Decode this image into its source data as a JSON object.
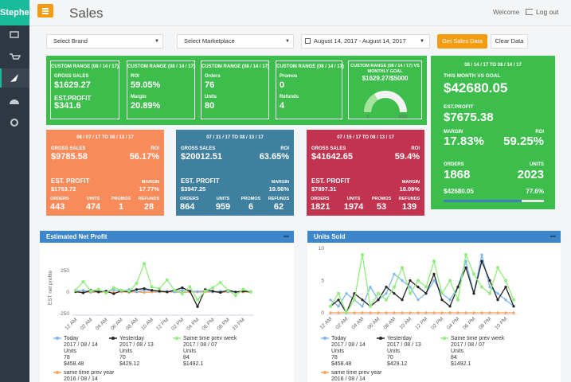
{
  "sidebar": {
    "user": "Stephen"
  },
  "header": {
    "title": "Sales",
    "welcome": "Welcome",
    "logout": "Log out"
  },
  "filters": {
    "brand": "Select Brand",
    "marketplace": "Select Marketplace",
    "date_range": "August 14, 2017 - August 14, 2017",
    "get_button": "Get Sales Data",
    "clear_button": "Clear Data"
  },
  "custom_cards": [
    {
      "title": "CUSTOM RANGE (08 / 14 / 17)",
      "items": [
        {
          "label": "GROSS SALES",
          "value": "$1629.27"
        },
        {
          "label": "EST.PROFIT",
          "value": "$341.6"
        }
      ]
    },
    {
      "title": "CUSTOM RANGE (08 / 14 / 17)",
      "items": [
        {
          "label": "ROI",
          "value": "59.05%"
        },
        {
          "label": "Margin",
          "value": "20.89%"
        }
      ]
    },
    {
      "title": "CUSTOM RANGE (08 / 14 / 17)",
      "items": [
        {
          "label": "Orders",
          "value": "76"
        },
        {
          "label": "Units",
          "value": "80"
        }
      ]
    },
    {
      "title": "CUSTOM RANGE (08 / 14 / 17)",
      "items": [
        {
          "label": "Promos",
          "value": "0"
        },
        {
          "label": "Refunds",
          "value": "4"
        }
      ]
    }
  ],
  "goal_card": {
    "title": "CUSTOM RANGE (08 / 14 / 17) VS MONTHLY GOAL",
    "value_label": "$1629.27/$5000",
    "min": 0,
    "current": 1629.27,
    "goal": 5000
  },
  "period_cards": [
    {
      "color": "#f98b5b",
      "range": "08 / 07 / 17 TO 08 / 13 / 17",
      "gross_label": "GROSS SALES",
      "gross": "$9785.58",
      "roi_label": "ROI",
      "roi": "56.17%",
      "profit_label": "EST. PROFIT",
      "profit": "$1753.72",
      "margin_label": "MARGIN",
      "margin": "17.77%",
      "stats": [
        {
          "label": "ORDERS",
          "value": "443"
        },
        {
          "label": "UNITS",
          "value": "474"
        },
        {
          "label": "PROMOS",
          "value": "1"
        },
        {
          "label": "REFUNDS",
          "value": "28"
        }
      ]
    },
    {
      "color": "#3f7f9f",
      "range": "07 / 31 / 17 TO 08 / 13 / 17",
      "gross_label": "GROSS SALES",
      "gross": "$20012.51",
      "roi_label": "ROI",
      "roi": "63.65%",
      "profit_label": "EST. PROFIT",
      "profit": "$3947.25",
      "margin_label": "MARGIN",
      "margin": "19.56%",
      "stats": [
        {
          "label": "ORDERS",
          "value": "864"
        },
        {
          "label": "UNITS",
          "value": "959"
        },
        {
          "label": "PROMOS",
          "value": "6"
        },
        {
          "label": "REFUNDS",
          "value": "62"
        }
      ]
    },
    {
      "color": "#c2334f",
      "range": "07 / 15 / 17 TO 08 / 13 / 17",
      "gross_label": "GROSS SALES",
      "gross": "$41642.65",
      "roi_label": "ROI",
      "roi": "59.4%",
      "profit_label": "EST. PROFIT",
      "profit": "$7897.31",
      "margin_label": "MARGIN",
      "margin": "18.09%",
      "stats": [
        {
          "label": "ORDERS",
          "value": "1821"
        },
        {
          "label": "UNITS",
          "value": "1974"
        },
        {
          "label": "PROMOS",
          "value": "53"
        },
        {
          "label": "REFUNDS",
          "value": "139"
        }
      ]
    }
  ],
  "month_card": {
    "range": "08 / 14 / 17 TO 08 / 14 / 17",
    "subtitle": "THIS MONTH VS GOAL",
    "total": "$42680.05",
    "profit_label": "EST.PROFIT",
    "profit": "$7675.38",
    "margin_label": "MARGIN",
    "roi_label": "ROI",
    "margin": "17.83%",
    "roi": "59.25%",
    "orders_label": "ORDERS",
    "units_label": "UNITS",
    "orders": "1868",
    "units": "2023",
    "footer_total": "$42680.05",
    "progress": 77.6,
    "progress_label": "77.6%"
  },
  "chart_data": [
    {
      "type": "line",
      "title": "Estimated Net Profit",
      "y_label": "EST net profite",
      "categories": [
        "12 AM",
        null,
        "02 AM",
        null,
        "04 AM",
        null,
        "06 AM",
        null,
        "08 AM",
        null,
        "10 AM",
        null,
        "12 PM",
        null,
        "02 PM",
        null,
        "04 PM",
        null,
        "06 PM",
        null,
        "08 PM",
        null,
        "10 PM",
        null
      ],
      "ylim": [
        -250,
        350
      ],
      "yticks": [
        -250,
        0,
        250
      ],
      "series": [
        {
          "name": "Today",
          "color": "#7cb5ec",
          "date": "2017 / 08 / 14",
          "units_label": "Units",
          "units": "78",
          "amount": "$458.48",
          "values": [
            10,
            20,
            0,
            15,
            5,
            25,
            10,
            30,
            0,
            20,
            15,
            5,
            10,
            0,
            20,
            10,
            5,
            15,
            0,
            10,
            5,
            0,
            10,
            5
          ]
        },
        {
          "name": "Yesterday",
          "color": "#222222",
          "date": "2017 / 08 / 13",
          "units_label": "Units",
          "units": "70",
          "amount": "$429.12",
          "values": [
            5,
            -10,
            20,
            0,
            10,
            -20,
            15,
            0,
            30,
            40,
            20,
            10,
            0,
            20,
            50,
            10,
            -170,
            30,
            10,
            -5,
            20,
            0,
            10,
            0
          ]
        },
        {
          "name": "Same time prev week",
          "color": "#90ed7d",
          "date": "2017 / 08 / 07",
          "units_label": "Units",
          "units": "84",
          "amount": "$1492.1",
          "values": [
            20,
            120,
            10,
            30,
            -10,
            50,
            20,
            10,
            100,
            330,
            60,
            40,
            140,
            20,
            -20,
            60,
            -90,
            10,
            50,
            110,
            20,
            -40,
            30,
            0
          ]
        },
        {
          "name": "same time prev year",
          "color": "#f7a35c",
          "date": "2016 / 08 / 14",
          "values": [
            0,
            0,
            -5,
            0,
            0,
            -5,
            0,
            0,
            0,
            -5,
            0,
            0,
            0,
            0,
            -5,
            0,
            0,
            0,
            0,
            -5,
            0,
            0,
            0,
            0
          ]
        }
      ]
    },
    {
      "type": "line",
      "title": "Units Sold",
      "y_label": "Units",
      "categories": [
        "12 AM",
        null,
        "02 AM",
        null,
        "04 AM",
        null,
        "06 AM",
        null,
        "08 AM",
        null,
        "10 AM",
        null,
        "12 PM",
        null,
        "02 PM",
        null,
        "04 PM",
        null,
        "06 PM",
        null,
        "08 PM",
        null,
        "10 PM",
        null
      ],
      "ylim": [
        0,
        10
      ],
      "yticks": [
        0,
        5,
        10
      ],
      "series": [
        {
          "name": "Today",
          "color": "#7cb5ec",
          "date": "2017 / 08 / 14",
          "units_label": "Units",
          "units": "78",
          "amount": "$458.48",
          "values": [
            2,
            1,
            3,
            2,
            1,
            4,
            2,
            3,
            6,
            5,
            4,
            2,
            3,
            5,
            3,
            2,
            4,
            8,
            3,
            9,
            4,
            3,
            2,
            1
          ]
        },
        {
          "name": "Yesterday",
          "color": "#222222",
          "date": "2017 / 08 / 13",
          "units_label": "Units",
          "units": "70",
          "amount": "$429.12",
          "values": [
            1,
            2,
            0,
            3,
            2,
            1,
            2,
            4,
            3,
            2,
            5,
            4,
            3,
            6,
            2,
            1,
            4,
            7,
            3,
            8,
            5,
            2,
            4,
            1
          ]
        },
        {
          "name": "Same time prev week",
          "color": "#90ed7d",
          "date": "2017 / 08 / 07",
          "units_label": "Units",
          "units": "84",
          "amount": "$1492.1",
          "values": [
            1,
            3,
            0,
            2,
            9,
            1,
            3,
            2,
            4,
            7,
            3,
            5,
            4,
            8,
            3,
            5,
            2,
            9,
            6,
            4,
            3,
            7,
            5,
            2
          ]
        },
        {
          "name": "same time prev year",
          "color": "#f7a35c",
          "date": "2016 / 08 / 14",
          "values": [
            0,
            0,
            0,
            0,
            0,
            0,
            0,
            0,
            0,
            0,
            0,
            0,
            0,
            0,
            0,
            0,
            0,
            0,
            0,
            0,
            0,
            0,
            0,
            0
          ]
        }
      ]
    }
  ]
}
